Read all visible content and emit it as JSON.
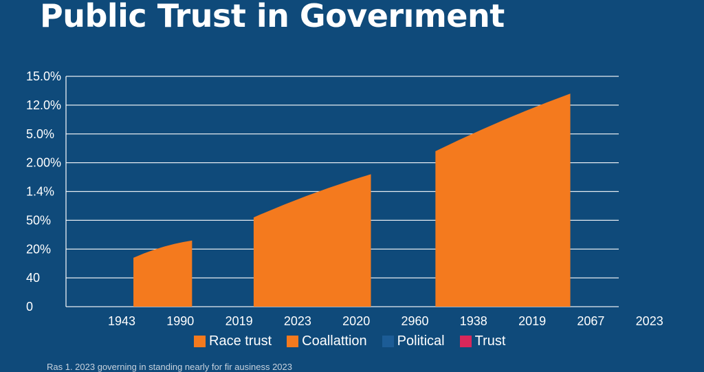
{
  "chart_data": {
    "type": "area",
    "title": "Public Trust in Goverıment",
    "y_tick_labels": [
      "15.0%",
      "12.0%",
      "5.0%",
      "2.00%",
      "1.4%",
      "50%",
      "20%",
      "40",
      "0"
    ],
    "x_tick_labels": [
      "1943",
      "1990",
      "2019",
      "2023",
      "2020",
      "2960",
      "1938",
      "2019",
      "2067",
      "2023"
    ],
    "grid": true,
    "legend_position": "bottom",
    "series": [
      {
        "name": "Race trust",
        "color": "#f47a1e"
      },
      {
        "name": "Coallattion",
        "color": "#f47a1e"
      },
      {
        "name": "Political",
        "color": "#1c5c96"
      },
      {
        "name": "Trust",
        "color": "#d9275a"
      }
    ],
    "areas": [
      {
        "series": "Race trust",
        "x_start": 0.2,
        "x_end": 1.2,
        "y_start": 1.7,
        "y_end": 2.3
      },
      {
        "series": "Race trust",
        "x_start": 2.25,
        "x_end": 4.25,
        "y_start": 3.1,
        "y_end": 4.6
      },
      {
        "series": "Race trust",
        "x_start": 5.35,
        "x_end": 7.65,
        "y_start": 5.4,
        "y_end": 7.4
      }
    ]
  },
  "colors": {
    "background": "#0f4a7a",
    "grid": "#ffffff",
    "accent": "#f47a1e"
  },
  "footnote": "Ras 1. 2023 governing in standing nearly for fir ausiness 2023"
}
